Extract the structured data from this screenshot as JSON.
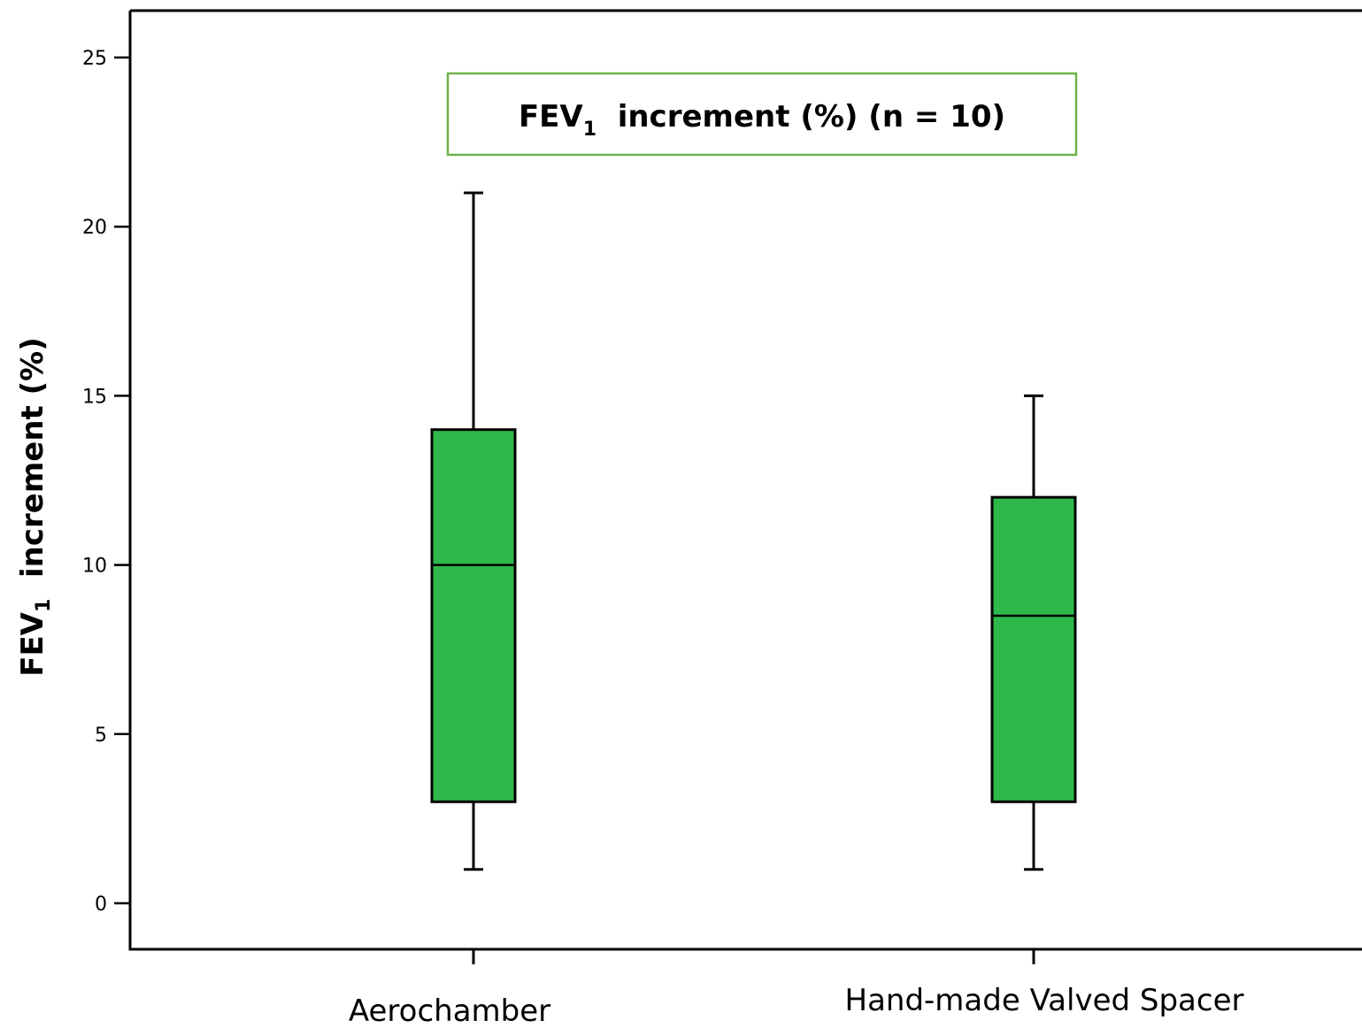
{
  "chart_data": {
    "type": "box",
    "title": {
      "prefix": "FEV",
      "subscript": "1",
      "suffix": "  increment (%) (n = 10)"
    },
    "ylabel": {
      "prefix": "FEV",
      "subscript": "1",
      "suffix": "  increment (%)"
    },
    "xlabel": "",
    "ylim": [
      -1.3,
      26.4
    ],
    "yticks": [
      0,
      5,
      10,
      15,
      20,
      25
    ],
    "grid": false,
    "categories": [
      "Aerochamber",
      "Hand-made Valved Spacer"
    ],
    "boxes": [
      {
        "category": "Aerochamber",
        "whisker_low": 1,
        "q1": 3,
        "median": 10,
        "q3": 14,
        "whisker_high": 21
      },
      {
        "category": "Hand-made Valved Spacer",
        "whisker_low": 1,
        "q1": 3,
        "median": 8.5,
        "q3": 12,
        "whisker_high": 15
      }
    ],
    "colors": {
      "box_fill": "#2eb84a",
      "stroke": "#000000",
      "title_border": "#6fb24a"
    }
  }
}
